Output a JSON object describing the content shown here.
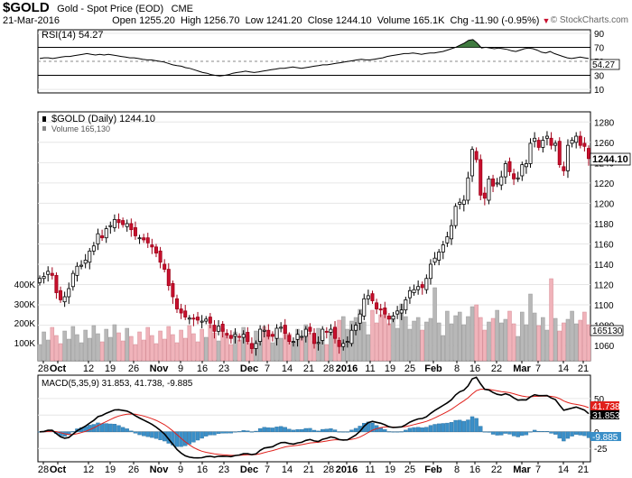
{
  "header": {
    "symbol": "$GOLD",
    "name": "Gold - Spot Price (EOD)",
    "exchange": "CME",
    "date": "21-Mar-2016",
    "open_label": "Open",
    "open": "1255.20",
    "high_label": "High",
    "high": "1256.70",
    "low_label": "Low",
    "low": "1241.20",
    "close_label": "Close",
    "close": "1244.10",
    "volume_label": "Volume",
    "volume": "165.1K",
    "chg_label": "Chg",
    "chg": "-11.90 (-0.95%)",
    "watermark": "© StockCharts.com"
  },
  "colors": {
    "up": "#ffffff",
    "down": "#c8102e",
    "volume_up": "#b8b8b8",
    "volume_down": "#f0b3ba",
    "macd_line": "#000000",
    "signal_line": "#e0201b",
    "histogram": "#3a8fc8",
    "rsi_over": "#3f7a3f",
    "rsi_under": "#8a4a4a"
  },
  "rsi": {
    "label": "RSI(14) 54.27",
    "ticks": [
      "90",
      "70",
      "50",
      "30",
      "10"
    ],
    "last": "54.27",
    "values": [
      54,
      55,
      55,
      54,
      55,
      56,
      57,
      57,
      58,
      59,
      60,
      61,
      60,
      59,
      60,
      59,
      60,
      59,
      58,
      57,
      56,
      55,
      55,
      54,
      53,
      52,
      52,
      51,
      50,
      49,
      47,
      45,
      44,
      43,
      41,
      40,
      38,
      36,
      34,
      33,
      31,
      30,
      29,
      30,
      31,
      33,
      34,
      35,
      36,
      35,
      34,
      35,
      36,
      37,
      38,
      39,
      40,
      40,
      41,
      42,
      41,
      40,
      41,
      42,
      43,
      44,
      45,
      45,
      46,
      47,
      48,
      49,
      50,
      51,
      52,
      53,
      52,
      52,
      53,
      54,
      55,
      57,
      58,
      59,
      60,
      61,
      61,
      62,
      61,
      60,
      61,
      62,
      62,
      63,
      64,
      66,
      68,
      70,
      73,
      76,
      80,
      81,
      76,
      69,
      70,
      69,
      68,
      69,
      68,
      67,
      65,
      64,
      66,
      68,
      69,
      68,
      66,
      63,
      62,
      64,
      61,
      59,
      57,
      55,
      54,
      55,
      56,
      55,
      54
    ]
  },
  "price": {
    "label": "$GOLD (Daily) 1244.10",
    "volume_label": "Volume 165,130",
    "last": "1244.10",
    "ticks": [
      "1280",
      "1260",
      "1240",
      "1220",
      "1200",
      "1180",
      "1160",
      "1140",
      "1120",
      "1100",
      "1080",
      "1060"
    ],
    "volume_ticks": [
      "400K",
      "300K",
      "200K",
      "100K"
    ],
    "volume_last": "165130"
  },
  "macd": {
    "label": "MACD(5,35,9) 31.853, 41.738, -9.885",
    "ticks": [
      "50",
      "25",
      "0",
      "-25"
    ],
    "last_macd": "31.853",
    "last_signal": "41.738",
    "last_hist": "-9.885"
  },
  "x_axis": {
    "labels": [
      "28",
      "Oct",
      "12",
      "19",
      "26",
      "Nov",
      "9",
      "16",
      "23",
      "Dec",
      "7",
      "14",
      "21",
      "28",
      "2016",
      "11",
      "19",
      "25",
      "Feb",
      "8",
      "16",
      "22",
      "Mar",
      "7",
      "14",
      "21"
    ],
    "bold": [
      "Oct",
      "Nov",
      "Dec",
      "2016",
      "Feb",
      "Mar"
    ]
  },
  "chart_data": {
    "type": "candlestick",
    "title": "$GOLD (Daily) 1244.10",
    "ylim": [
      1045,
      1290
    ],
    "x_range": [
      "2015-09-28",
      "2016-03-21"
    ],
    "close": [
      1126,
      1128,
      1133,
      1129,
      1112,
      1105,
      1108,
      1116,
      1131,
      1138,
      1139,
      1144,
      1153,
      1158,
      1170,
      1166,
      1175,
      1178,
      1184,
      1181,
      1179,
      1180,
      1174,
      1168,
      1166,
      1164,
      1161,
      1157,
      1151,
      1142,
      1135,
      1119,
      1108,
      1096,
      1092,
      1088,
      1087,
      1086,
      1085,
      1084,
      1086,
      1082,
      1074,
      1079,
      1074,
      1070,
      1067,
      1071,
      1068,
      1071,
      1064,
      1057,
      1062,
      1076,
      1075,
      1069,
      1069,
      1077,
      1078,
      1072,
      1064,
      1064,
      1071,
      1069,
      1076,
      1074,
      1062,
      1063,
      1076,
      1073,
      1076,
      1067,
      1059,
      1062,
      1064,
      1075,
      1080,
      1091,
      1106,
      1109,
      1104,
      1096,
      1095,
      1091,
      1086,
      1089,
      1094,
      1095,
      1105,
      1114,
      1115,
      1118,
      1117,
      1126,
      1140,
      1146,
      1152,
      1159,
      1167,
      1178,
      1197,
      1201,
      1203,
      1225,
      1253,
      1243,
      1208,
      1205,
      1224,
      1217,
      1220,
      1226,
      1239,
      1231,
      1224,
      1225,
      1238,
      1239,
      1259,
      1264,
      1255,
      1262,
      1266,
      1257,
      1259,
      1238,
      1232,
      1257,
      1262,
      1266,
      1257,
      1256,
      1244
    ]
  }
}
